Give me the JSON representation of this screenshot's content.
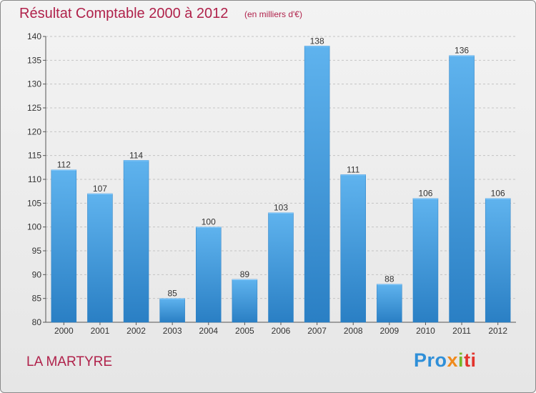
{
  "header": {
    "title": "Résultat Comptable 2000 à 2012",
    "subtitle": "(en milliers d'€)"
  },
  "footer": {
    "commune": "LA MARTYRE",
    "logo_parts": [
      "Pro",
      "x",
      "i",
      "ti"
    ]
  },
  "colors": {
    "title": "#b0224b",
    "bar_light": "#5fb3ee",
    "bar_dark": "#2a7fc4",
    "logo_blue": "#2f8fd8",
    "logo_orange": "#f08a1c",
    "logo_green": "#78b82a",
    "logo_red": "#e2342d"
  },
  "chart_data": {
    "type": "bar",
    "title": "Résultat Comptable 2000 à 2012",
    "subtitle": "(en milliers d'€)",
    "categories": [
      "2000",
      "2001",
      "2002",
      "2003",
      "2004",
      "2005",
      "2006",
      "2007",
      "2008",
      "2009",
      "2010",
      "2011",
      "2012"
    ],
    "values": [
      112,
      107,
      114,
      85,
      100,
      89,
      103,
      138,
      111,
      88,
      106,
      136,
      106
    ],
    "ylim": [
      80,
      140
    ],
    "yticks": [
      80,
      85,
      90,
      95,
      100,
      105,
      110,
      115,
      120,
      125,
      130,
      135,
      140
    ],
    "grid": true,
    "data_labels": true
  }
}
